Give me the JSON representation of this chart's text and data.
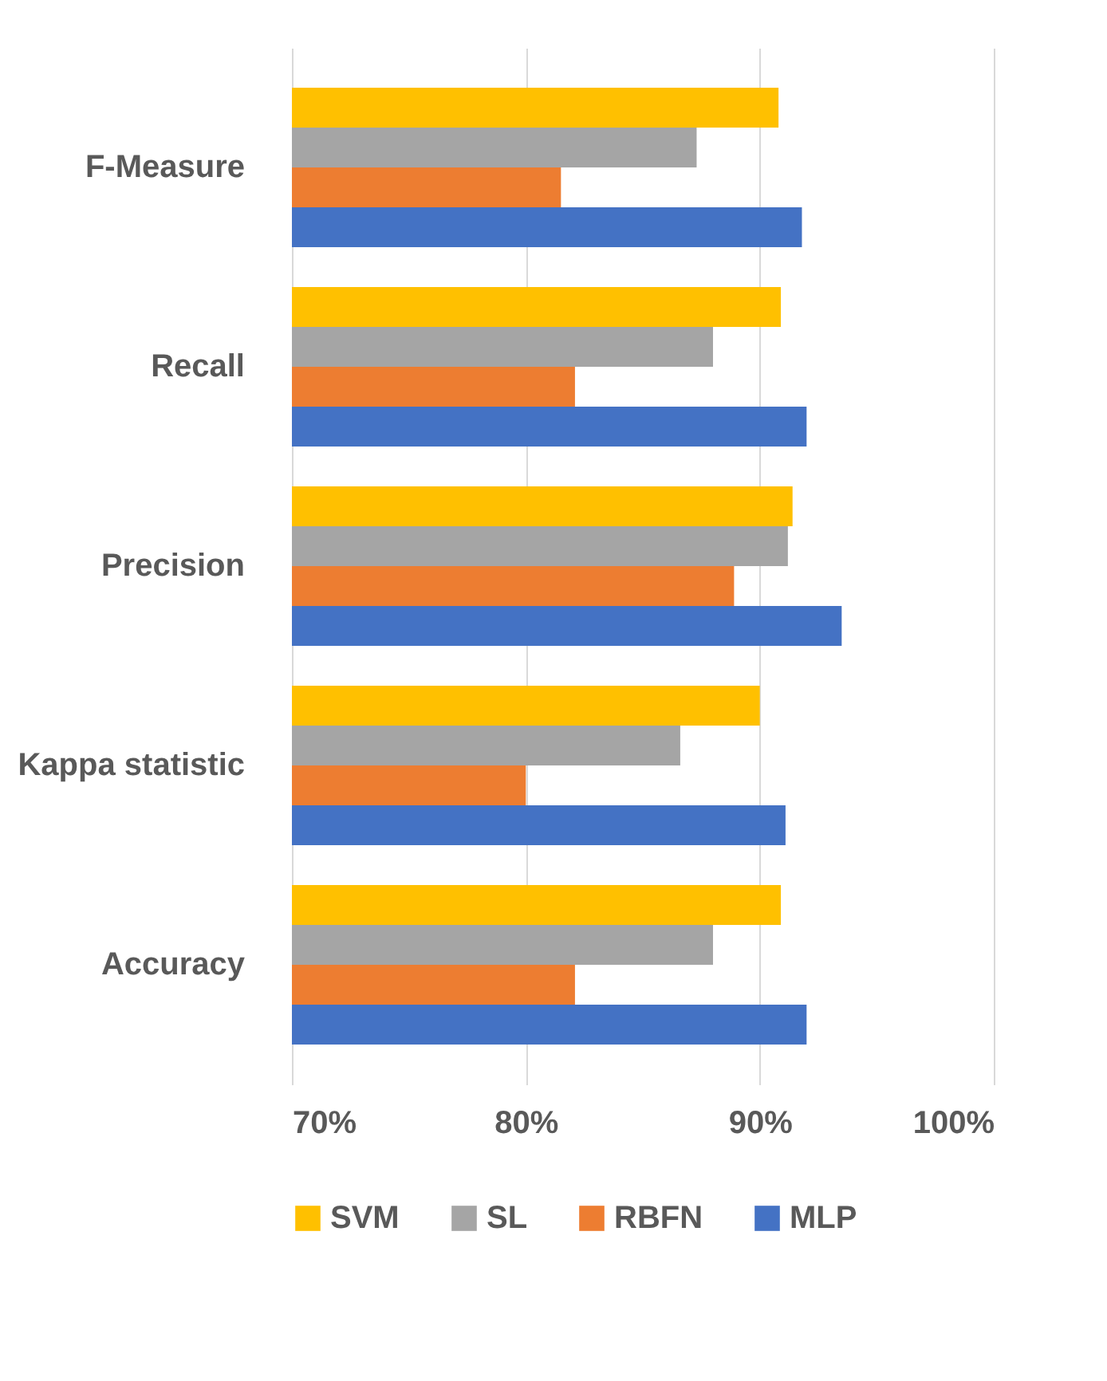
{
  "chart_data": {
    "type": "bar",
    "orientation": "horizontal",
    "categories": [
      "F-Measure",
      "Recall",
      "Precision",
      "Kappa statistic",
      "Accuracy"
    ],
    "series": [
      {
        "name": "SVM",
        "color": "#ffc000",
        "values": [
          90.8,
          90.9,
          91.4,
          90.0,
          90.9
        ]
      },
      {
        "name": "SL",
        "color": "#a5a5a5",
        "values": [
          87.3,
          88.0,
          91.2,
          86.6,
          88.0
        ]
      },
      {
        "name": "RBFN",
        "color": "#ed7d31",
        "values": [
          81.5,
          82.1,
          88.9,
          80.0,
          82.1
        ]
      },
      {
        "name": "MLP",
        "color": "#4472c4",
        "values": [
          91.8,
          92.0,
          93.5,
          91.1,
          92.0
        ]
      }
    ],
    "xlim": [
      70,
      100
    ],
    "xticks": [
      {
        "value": 70,
        "label": "70%"
      },
      {
        "value": 80,
        "label": "80%"
      },
      {
        "value": 90,
        "label": "90%"
      },
      {
        "value": 100,
        "label": "100%"
      }
    ],
    "grid": "x",
    "legend": "bottom"
  }
}
